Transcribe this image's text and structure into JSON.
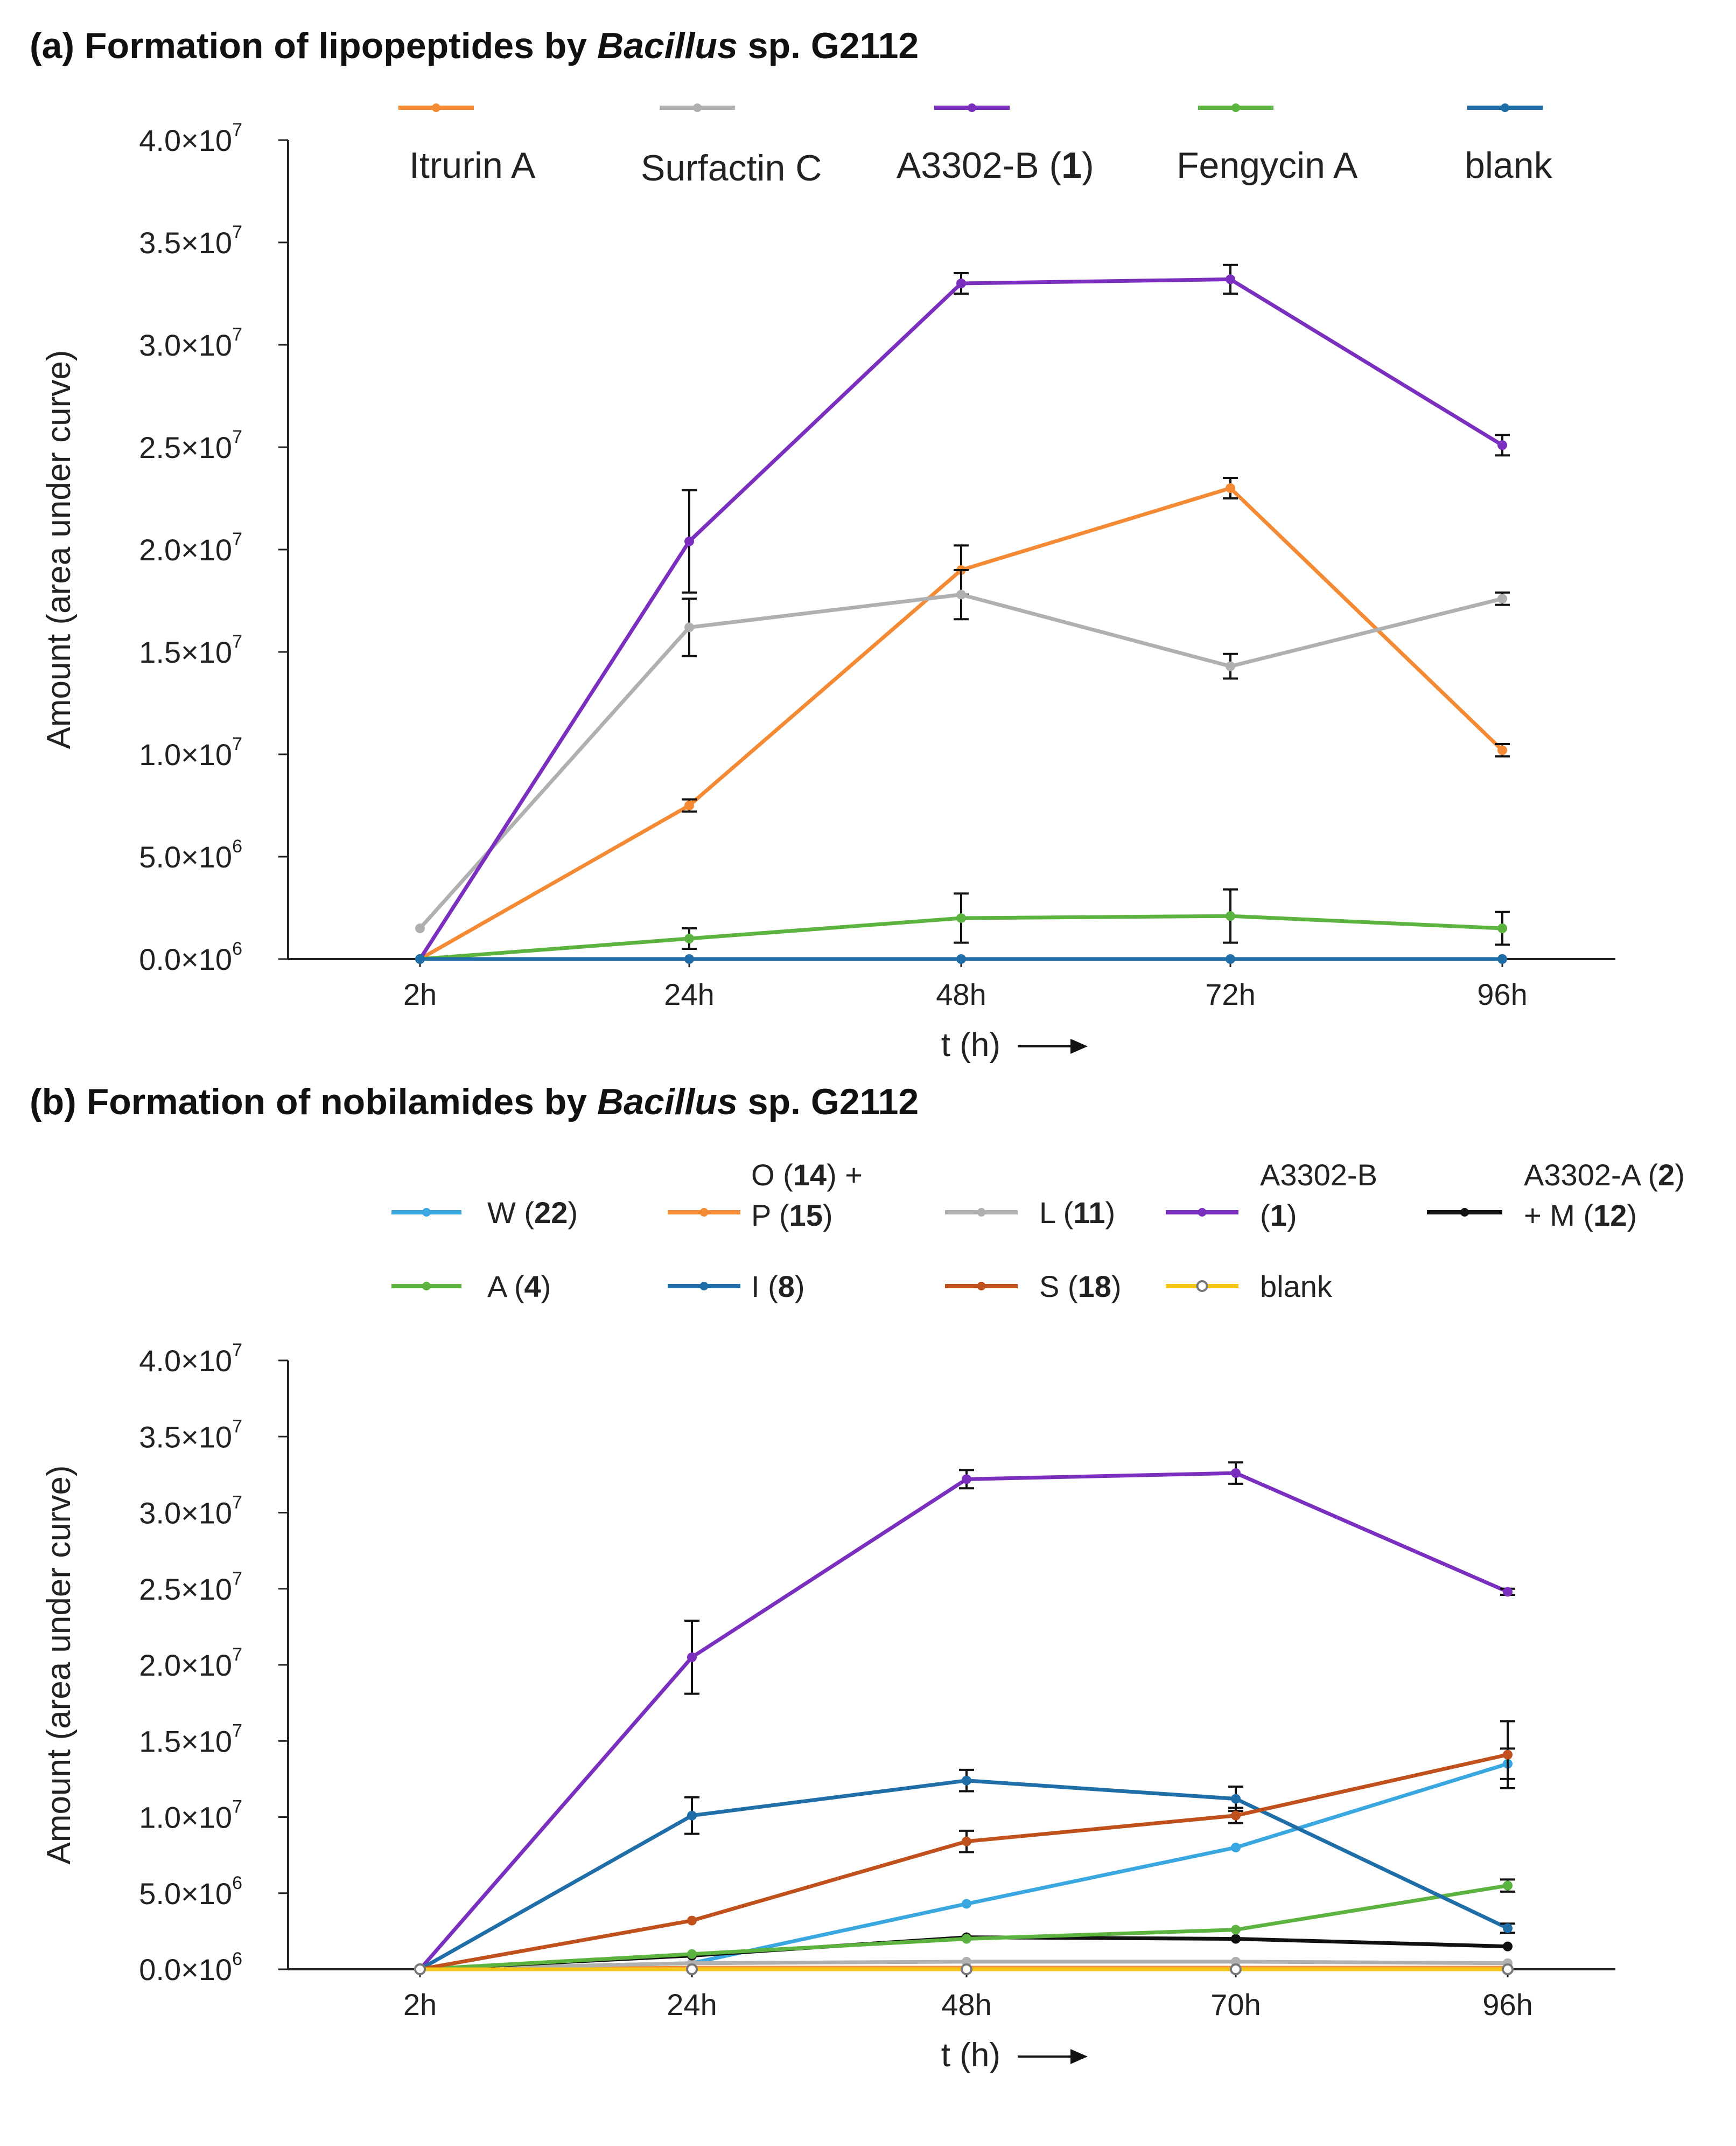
{
  "chart_data": [
    {
      "panel": "a",
      "type": "line",
      "title_parts": [
        "(a) Formation of lipopeptides by ",
        "Bacillus",
        " sp. G2112"
      ],
      "xlabel": "t (h)",
      "ylabel": "Amount (area under curve)",
      "categories": [
        "2h",
        "24h",
        "48h",
        "72h",
        "96h"
      ],
      "ylim": [
        0,
        40000000
      ],
      "yticks": [
        {
          "value": 0,
          "mant": "0.0",
          "exp": "6"
        },
        {
          "value": 5000000,
          "mant": "5.0",
          "exp": "6"
        },
        {
          "value": 10000000,
          "mant": "1.0",
          "exp": "7"
        },
        {
          "value": 15000000,
          "mant": "1.5",
          "exp": "7"
        },
        {
          "value": 20000000,
          "mant": "2.0",
          "exp": "7"
        },
        {
          "value": 25000000,
          "mant": "2.5",
          "exp": "7"
        },
        {
          "value": 30000000,
          "mant": "3.0",
          "exp": "7"
        },
        {
          "value": 35000000,
          "mant": "3.5",
          "exp": "7"
        },
        {
          "value": 40000000,
          "mant": "4.0",
          "exp": "7"
        }
      ],
      "times_sign": "×10",
      "series": [
        {
          "name": "Itrurin A",
          "color": "#f58a34",
          "values": [
            0,
            7500000,
            19000000,
            23000000,
            10200000
          ],
          "errors": [
            0,
            300000,
            1200000,
            500000,
            300000
          ]
        },
        {
          "name": "Surfactin C",
          "color": "#b0b0b0",
          "values": [
            1500000,
            16200000,
            17800000,
            14300000,
            17600000
          ],
          "errors": [
            0,
            1400000,
            1200000,
            600000,
            300000
          ]
        },
        {
          "name": "A3302-B (1)",
          "name_parts": [
            [
              "A3302-B (",
              false
            ],
            [
              "1",
              true
            ],
            [
              ")",
              false
            ]
          ],
          "color": "#7b2fbf",
          "values": [
            0,
            20400000,
            33000000,
            33200000,
            25100000
          ],
          "errors": [
            0,
            2500000,
            500000,
            700000,
            500000
          ]
        },
        {
          "name": "Fengycin A",
          "color": "#5cb340",
          "values": [
            0,
            1000000,
            2000000,
            2100000,
            1500000
          ],
          "errors": [
            0,
            500000,
            1200000,
            1300000,
            800000
          ]
        },
        {
          "name": "blank",
          "color": "#1f6ea8",
          "values": [
            0,
            0,
            0,
            0,
            0
          ],
          "errors": [
            0,
            0,
            0,
            0,
            0
          ]
        }
      ]
    },
    {
      "panel": "b",
      "type": "line",
      "title_parts": [
        "(b) Formation of nobilamides by ",
        "Bacillus",
        " sp. G2112"
      ],
      "xlabel": "t (h)",
      "ylabel": "Amount (area under curve)",
      "categories": [
        "2h",
        "24h",
        "48h",
        "70h",
        "96h"
      ],
      "ylim": [
        0,
        40000000
      ],
      "yticks": [
        {
          "value": 0,
          "mant": "0.0",
          "exp": "6"
        },
        {
          "value": 5000000,
          "mant": "5.0",
          "exp": "6"
        },
        {
          "value": 10000000,
          "mant": "1.0",
          "exp": "7"
        },
        {
          "value": 15000000,
          "mant": "1.5",
          "exp": "7"
        },
        {
          "value": 20000000,
          "mant": "2.0",
          "exp": "7"
        },
        {
          "value": 25000000,
          "mant": "2.5",
          "exp": "7"
        },
        {
          "value": 30000000,
          "mant": "3.0",
          "exp": "7"
        },
        {
          "value": 35000000,
          "mant": "3.5",
          "exp": "7"
        },
        {
          "value": 40000000,
          "mant": "4.0",
          "exp": "7"
        }
      ],
      "times_sign": "×10",
      "series": [
        {
          "name": "W (22)",
          "lines": [
            [
              [
                "W (",
                false
              ],
              [
                "22",
                true
              ],
              [
                ")",
                false
              ]
            ]
          ],
          "color": "#3aa7e0",
          "values": [
            0,
            400000,
            4300000,
            8000000,
            13500000
          ],
          "errors": [
            0,
            0,
            0,
            0,
            1000000
          ]
        },
        {
          "name": "O (14) + P (15)",
          "lines": [
            [
              [
                "O (",
                false
              ],
              [
                "14",
                true
              ],
              [
                ") +",
                false
              ]
            ],
            [
              [
                "P (",
                false
              ],
              [
                "15",
                true
              ],
              [
                ")",
                false
              ]
            ]
          ],
          "color": "#f58a34",
          "values": [
            0,
            100000,
            100000,
            100000,
            100000
          ],
          "errors": [
            0,
            0,
            0,
            0,
            0
          ]
        },
        {
          "name": "L (11)",
          "lines": [
            [
              [
                "L (",
                false
              ],
              [
                "11",
                true
              ],
              [
                ")",
                false
              ]
            ]
          ],
          "color": "#b0b0b0",
          "values": [
            0,
            400000,
            500000,
            500000,
            400000
          ],
          "errors": [
            0,
            0,
            0,
            0,
            0
          ]
        },
        {
          "name": "A3302-B (1)",
          "lines": [
            [
              [
                "A3302-B",
                false
              ]
            ],
            [
              [
                "(",
                false
              ],
              [
                "1",
                true
              ],
              [
                ")",
                false
              ]
            ]
          ],
          "color": "#7b2fbf",
          "values": [
            0,
            20500000,
            32200000,
            32600000,
            24800000
          ],
          "errors": [
            0,
            2400000,
            600000,
            700000,
            200000
          ]
        },
        {
          "name": "A3302-A (2) + M (12)",
          "lines": [
            [
              [
                "A3302-A (",
                false
              ],
              [
                "2",
                true
              ],
              [
                ")",
                false
              ]
            ],
            [
              [
                "+ M (",
                false
              ],
              [
                "12",
                true
              ],
              [
                ")",
                false
              ]
            ]
          ],
          "color": "#111111",
          "values": [
            0,
            900000,
            2100000,
            2000000,
            1500000
          ],
          "errors": [
            0,
            0,
            0,
            0,
            0
          ]
        },
        {
          "name": "A (4)",
          "lines": [
            [
              [
                "A (",
                false
              ],
              [
                "4",
                true
              ],
              [
                ")",
                false
              ]
            ]
          ],
          "color": "#5cb340",
          "values": [
            0,
            1000000,
            2000000,
            2600000,
            5500000
          ],
          "errors": [
            0,
            0,
            0,
            0,
            400000
          ]
        },
        {
          "name": "I (8)",
          "lines": [
            [
              [
                "I (",
                false
              ],
              [
                "8",
                true
              ],
              [
                ")",
                false
              ]
            ]
          ],
          "color": "#1f6ea8",
          "values": [
            0,
            10100000,
            12400000,
            11200000,
            2700000
          ],
          "errors": [
            0,
            1200000,
            700000,
            800000,
            300000
          ]
        },
        {
          "name": "S (18)",
          "lines": [
            [
              [
                "S (",
                false
              ],
              [
                "18",
                true
              ],
              [
                ")",
                false
              ]
            ]
          ],
          "color": "#c0501c",
          "values": [
            0,
            3200000,
            8400000,
            10100000,
            14100000
          ],
          "errors": [
            0,
            0,
            700000,
            500000,
            2200000
          ]
        },
        {
          "name": "blank",
          "lines": [
            [
              [
                "blank",
                false
              ]
            ]
          ],
          "color": "#f5c518",
          "values": [
            0,
            0,
            0,
            0,
            0
          ],
          "errors": [
            0,
            0,
            0,
            0,
            0
          ]
        }
      ]
    }
  ]
}
